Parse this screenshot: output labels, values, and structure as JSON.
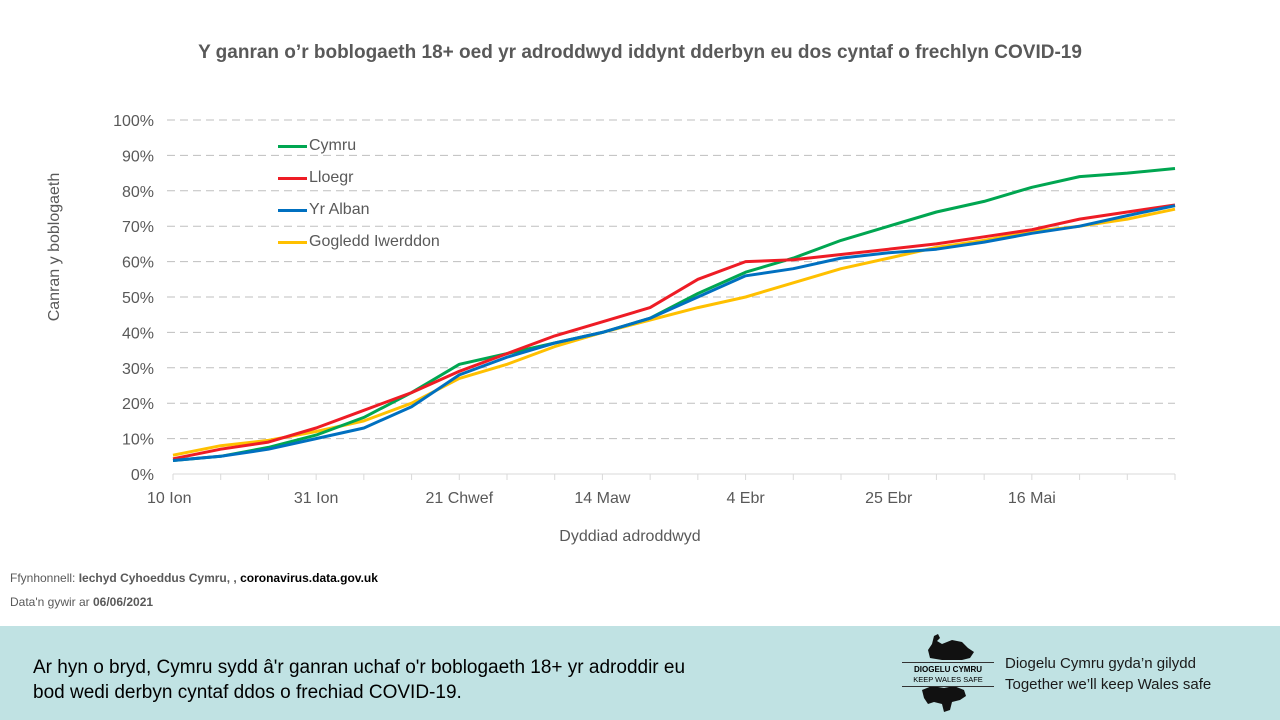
{
  "chart_data": {
    "type": "line",
    "title": "Y ganran o’r boblogaeth 18+ oed yr adroddwyd iddynt dderbyn eu dos cyntaf o frechlyn COVID-19",
    "xlabel": "Dyddiad adroddwyd",
    "ylabel": "Canran y boblogaeth",
    "ylim": [
      0,
      100
    ],
    "y_ticks": [
      "0%",
      "10%",
      "20%",
      "30%",
      "40%",
      "50%",
      "60%",
      "70%",
      "80%",
      "90%",
      "100%"
    ],
    "x_tick_labels": [
      "10 Ion",
      "31 Ion",
      "21 Chwef",
      "14 Maw",
      "4 Ebr",
      "25 Ebr",
      "16 Mai"
    ],
    "grid": "horizontal dashed",
    "legend_position": "upper left inside",
    "x": [
      "10 Ion",
      "17 Ion",
      "24 Ion",
      "31 Ion",
      "7 Chwef",
      "14 Chwef",
      "21 Chwef",
      "28 Chwef",
      "7 Maw",
      "14 Maw",
      "21 Maw",
      "28 Maw",
      "4 Ebr",
      "11 Ebr",
      "18 Ebr",
      "25 Ebr",
      "2 Mai",
      "9 Mai",
      "16 Mai",
      "23 Mai",
      "30 Mai",
      "5 Meh"
    ],
    "series": [
      {
        "name": "Cymru",
        "color": "#00a651",
        "values": [
          3.8,
          5.0,
          7.5,
          11.0,
          16.0,
          23.0,
          31.0,
          34.0,
          37.0,
          40.0,
          44.0,
          51.0,
          57.0,
          61.0,
          66.0,
          70.0,
          74.0,
          77.0,
          81.0,
          84.0,
          85.0,
          86.3
        ]
      },
      {
        "name": "Lloegr",
        "color": "#ee1c25",
        "values": [
          4.3,
          7.0,
          9.0,
          13.0,
          18.0,
          23.0,
          29.0,
          34.0,
          39.0,
          43.0,
          47.0,
          55.0,
          60.0,
          60.5,
          62.0,
          63.5,
          65.0,
          67.0,
          69.0,
          72.0,
          74.0,
          76.0
        ]
      },
      {
        "name": "Yr Alban",
        "color": "#0070c0",
        "values": [
          3.8,
          5.0,
          7.0,
          10.0,
          13.0,
          19.0,
          28.0,
          33.0,
          37.0,
          40.0,
          44.0,
          50.0,
          56.0,
          58.0,
          61.0,
          62.5,
          63.5,
          65.5,
          68.0,
          70.0,
          73.0,
          75.8
        ]
      },
      {
        "name": "Gogledd Iwerddon",
        "color": "#ffc000",
        "values": [
          5.3,
          8.0,
          9.5,
          12.0,
          15.0,
          20.0,
          27.0,
          31.0,
          36.0,
          40.0,
          43.5,
          47.0,
          50.0,
          54.0,
          58.0,
          61.0,
          64.0,
          66.0,
          68.5,
          70.0,
          72.0,
          74.8
        ]
      }
    ]
  },
  "source": {
    "prefix": "Ffynhonnell: ",
    "org": "Iechyd Cyhoeddus Cymru, , ",
    "url": "coronavirus.data.gov.uk"
  },
  "data_date": {
    "prefix": "Data'n gywir ar ",
    "date": "06/06/2021"
  },
  "footer": {
    "message": "Ar hyn o bryd, Cymru sydd â'r ganran uchaf o'r boblogaeth 18+ yr adroddir eu bod wedi derbyn cyntaf ddos o frechiad COVID-19.",
    "logo_line1": "DIOGELU CYMRU",
    "logo_line2": "KEEP WALES SAFE",
    "slogan_line1": "Diogelu Cymru gyda’n gilydd",
    "slogan_line2": "Together we’ll keep Wales safe",
    "background": "#c0e2e3"
  }
}
